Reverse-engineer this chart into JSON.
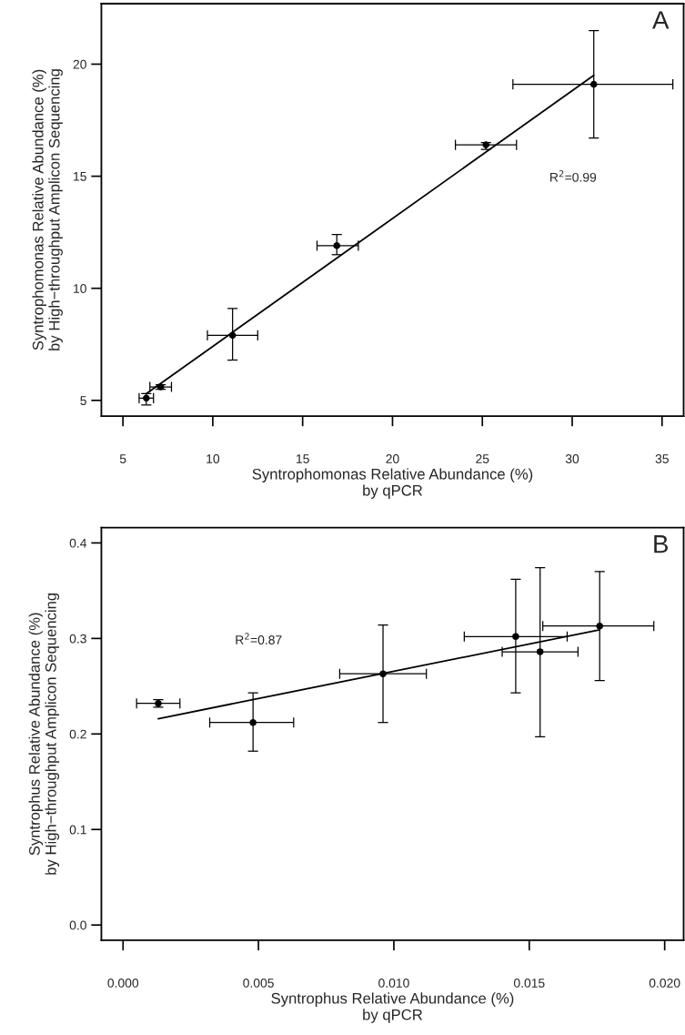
{
  "chart_data": [
    {
      "type": "scatter",
      "xlabel": "Syntrophomonas Relative Abundance (%)\nby qPCR",
      "ylabel": "Syntrophomonas Relative Abundance (%)\nby High−throughput Amplicon Sequencing",
      "annotations": [
        "A",
        "R$^{2}$=0.99"
      ],
      "grid": false,
      "legend": false,
      "xlim": [
        3.8,
        36.2
      ],
      "ylim": [
        4.3,
        22.7
      ],
      "xticks": [
        5,
        10,
        15,
        20,
        25,
        30,
        35
      ],
      "yticks": [
        5,
        10,
        15,
        20
      ],
      "series": [
        {
          "marker": "circle",
          "color": "#000000",
          "x": [
            6.3,
            7.1,
            11.1,
            16.9,
            25.2,
            31.2
          ],
          "values": [
            5.1,
            5.6,
            7.9,
            11.9,
            16.4,
            19.1
          ],
          "xerrors": [
            [
              5.9,
              6.7
            ],
            [
              6.5,
              7.7
            ],
            [
              9.7,
              12.5
            ],
            [
              15.8,
              18.1
            ],
            [
              23.5,
              26.9
            ],
            [
              26.7,
              35.6
            ]
          ],
          "errors": [
            [
              4.8,
              5.3
            ],
            [
              5.5,
              5.7
            ],
            [
              6.8,
              9.1
            ],
            [
              11.5,
              12.4
            ],
            [
              16.2,
              16.5
            ],
            [
              16.7,
              21.5
            ]
          ]
        },
        {
          "type": "line",
          "marker": "none",
          "color": "#000000",
          "line_style": "solid",
          "x": [
            6.3,
            31.2
          ],
          "values": [
            5.3,
            19.5
          ]
        }
      ]
    },
    {
      "type": "scatter",
      "xlabel": "Syntrophus Relative Abundance (%)\nby qPCR",
      "ylabel": "Syntrophus Relative Abundance (%)\nby High−throughput Amplicon Sequencing",
      "annotations": [
        "B",
        "R$^{2}$=0.87"
      ],
      "grid": false,
      "legend": false,
      "xlim": [
        -0.0008,
        0.0207
      ],
      "ylim": [
        -0.016,
        0.416
      ],
      "xticks": [
        {
          "value": 0,
          "label": "0.000"
        },
        {
          "value": 0.005,
          "label": "0.005"
        },
        {
          "value": 0.01,
          "label": "0.010"
        },
        {
          "value": 0.015,
          "label": "0.015"
        },
        {
          "value": 0.02,
          "label": "0.020"
        }
      ],
      "yticks": [
        {
          "value": 0,
          "label": "0.0"
        },
        0.1,
        0.2,
        0.3,
        0.4
      ],
      "series": [
        {
          "marker": "circle",
          "color": "#000000",
          "x": [
            0.0013,
            0.0048,
            0.0096,
            0.0145,
            0.0154,
            0.0176
          ],
          "values": [
            0.232,
            0.212,
            0.263,
            0.302,
            0.286,
            0.313
          ],
          "xerrors": [
            [
              0.0005,
              0.0021
            ],
            [
              0.0032,
              0.0063
            ],
            [
              0.008,
              0.0112
            ],
            [
              0.0126,
              0.0164
            ],
            [
              0.014,
              0.0168
            ],
            [
              0.0155,
              0.0196
            ]
          ],
          "errors": [
            [
              0.228,
              0.236
            ],
            [
              0.182,
              0.243
            ],
            [
              0.212,
              0.314
            ],
            [
              0.243,
              0.362
            ],
            [
              0.197,
              0.374
            ],
            [
              0.256,
              0.37
            ]
          ]
        },
        {
          "type": "line",
          "marker": "none",
          "color": "#000000",
          "line_style": "solid",
          "x": [
            0.0013,
            0.0176
          ],
          "values": [
            0.216,
            0.309
          ]
        }
      ]
    }
  ]
}
